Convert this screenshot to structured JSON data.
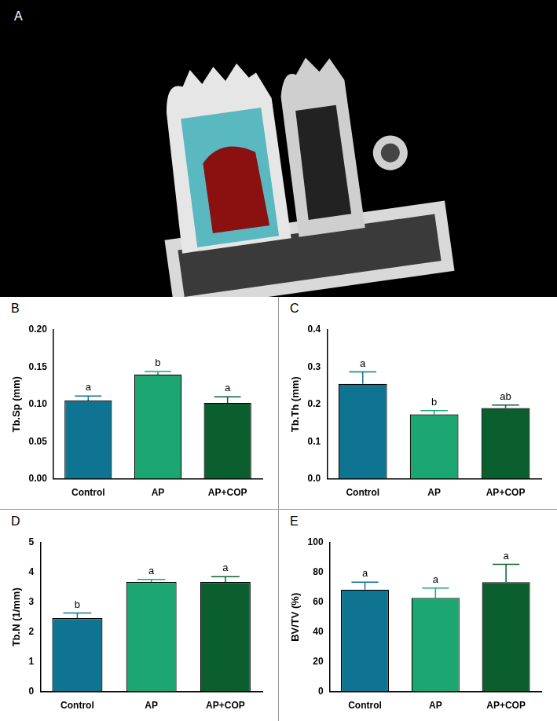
{
  "panel_a": {
    "label": "A"
  },
  "chart_data": [
    {
      "label": "B",
      "type": "bar",
      "y_label": "Tb.Sp (mm)",
      "categories": [
        "Control",
        "AP",
        "AP+COP"
      ],
      "values": [
        0.105,
        0.14,
        0.102
      ],
      "errors": [
        0.006,
        0.004,
        0.008
      ],
      "significance": [
        "a",
        "b",
        "a"
      ],
      "colors": [
        "#0f7392",
        "#1ba672",
        "#0b5e2e"
      ],
      "ylim": [
        0,
        0.2
      ],
      "yticks": [
        {
          "value": 0,
          "label": "0.00"
        },
        {
          "value": 0.05,
          "label": "0.05"
        },
        {
          "value": 0.1,
          "label": "0.10"
        },
        {
          "value": 0.15,
          "label": "0.15"
        },
        {
          "value": 0.2,
          "label": "0.20"
        }
      ],
      "grid": false
    },
    {
      "label": "C",
      "type": "bar",
      "y_label": "Tb.Th (mm)",
      "categories": [
        "Control",
        "AP",
        "AP+COP"
      ],
      "values": [
        0.255,
        0.173,
        0.19
      ],
      "errors": [
        0.032,
        0.01,
        0.008
      ],
      "significance": [
        "a",
        "b",
        "ab"
      ],
      "colors": [
        "#0f7392",
        "#1ba672",
        "#0b5e2e"
      ],
      "ylim": [
        0,
        0.4
      ],
      "yticks": [
        {
          "value": 0,
          "label": "0.0"
        },
        0.1,
        0.2,
        0.3,
        0.4
      ],
      "grid": false
    },
    {
      "label": "D",
      "type": "bar",
      "y_label": "Tb.N (1/mm)",
      "categories": [
        "Control",
        "AP",
        "AP+COP"
      ],
      "values": [
        2.47,
        3.68,
        3.68
      ],
      "errors": [
        0.17,
        0.09,
        0.18
      ],
      "significance": [
        "b",
        "a",
        "a"
      ],
      "colors": [
        "#0f7392",
        "#1ba672",
        "#0b5e2e"
      ],
      "ylim": [
        0,
        5
      ],
      "yticks": [
        0,
        1,
        2,
        3,
        4,
        5
      ],
      "grid": false
    },
    {
      "label": "E",
      "type": "bar",
      "y_label": "BV/TV (%)",
      "categories": [
        "Control",
        "AP",
        "AP+COP"
      ],
      "values": [
        68.5,
        63,
        73.5
      ],
      "errors": [
        5,
        6.5,
        12
      ],
      "significance": [
        "a",
        "a",
        "a"
      ],
      "colors": [
        "#0f7392",
        "#1ba672",
        "#0b5e2e"
      ],
      "ylim": [
        0,
        100
      ],
      "yticks": [
        0,
        20,
        40,
        60,
        80,
        100
      ],
      "grid": false
    }
  ]
}
